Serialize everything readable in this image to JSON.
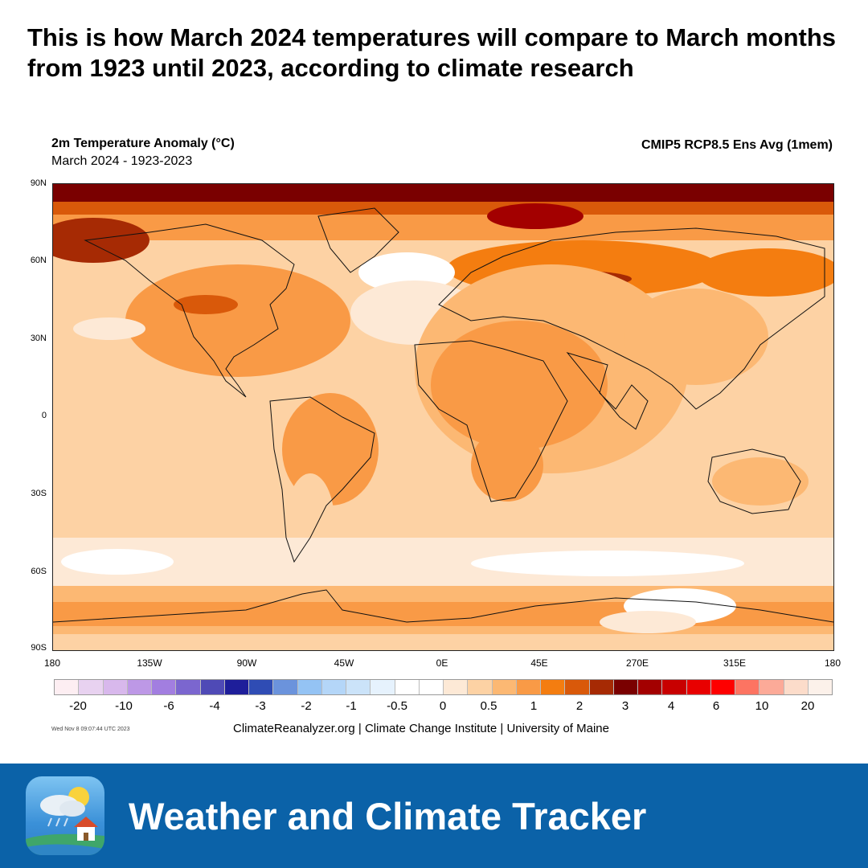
{
  "headline": "This is how March 2024 temperatures will compare to March months from 1923 until 2023, according to climate research",
  "map": {
    "title": "2m Temperature Anomaly (°C)",
    "subtitle": "March 2024 - 1923-2023",
    "model": "CMIP5 RCP8.5 Ens Avg (1mem)",
    "lat_labels": [
      "90N",
      "60N",
      "30N",
      "0",
      "30S",
      "60S",
      "90S"
    ],
    "lon_labels": [
      "180",
      "135W",
      "90W",
      "45W",
      "0E",
      "45E",
      "270E",
      "315E",
      "180"
    ]
  },
  "legend": {
    "colors": [
      "#fdeef2",
      "#e8d2f0",
      "#d8b8ec",
      "#bd98e6",
      "#a27ee0",
      "#7b66cf",
      "#4f4ab6",
      "#1e1e9a",
      "#2f4cb4",
      "#6b93dc",
      "#94c3f4",
      "#b4d6f8",
      "#cbe3f9",
      "#e6f2fd",
      "#ffffff",
      "#ffffff",
      "#fde9d6",
      "#fdd2a4",
      "#fcb873",
      "#f99a46",
      "#f47d10",
      "#d9590a",
      "#a62a04",
      "#7a0000",
      "#a30000",
      "#c80000",
      "#e80000",
      "#fe0000",
      "#fd7462",
      "#fcaa98",
      "#fcdcca",
      "#fcf1ea"
    ],
    "labels": [
      "-20",
      "-10",
      "-6",
      "-4",
      "-3",
      "-2",
      "-1",
      "-0.5",
      "0",
      "0.5",
      "1",
      "2",
      "3",
      "4",
      "6",
      "10",
      "20"
    ]
  },
  "timestamp": "Wed Nov 8 09:07:44 UTC 2023",
  "credits": "ClimateReanalyzer.org | Climate Change Institute | University of Maine",
  "footer": {
    "title": "Weather and Climate Tracker",
    "icon": "weather-app-icon"
  }
}
